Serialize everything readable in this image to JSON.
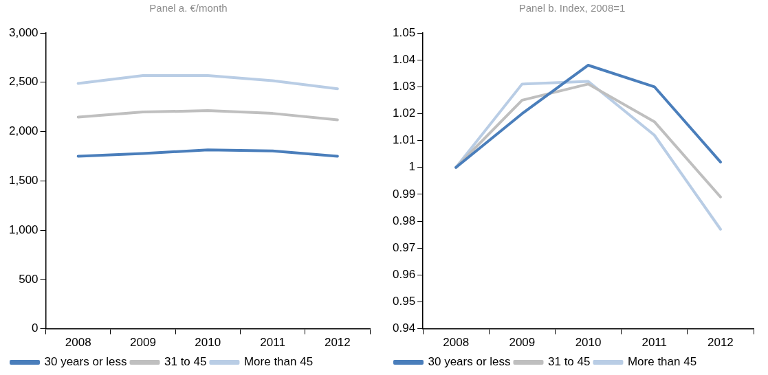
{
  "chart_data": [
    {
      "type": "line",
      "title": "Panel a. €/month",
      "categories": [
        "2008",
        "2009",
        "2010",
        "2011",
        "2012"
      ],
      "series": [
        {
          "name": "30 years or less",
          "color": "#4a7ebb",
          "values": [
            1750,
            1777,
            1814,
            1803,
            1750
          ]
        },
        {
          "name": "31 to 45",
          "color": "#bfbfbf",
          "values": [
            2147,
            2198,
            2212,
            2184,
            2118
          ]
        },
        {
          "name": "More than 45",
          "color": "#b9cde5",
          "values": [
            2488,
            2568,
            2568,
            2516,
            2434
          ]
        }
      ],
      "ylim": [
        0,
        3000
      ],
      "yticks": [
        0,
        500,
        {
          "value": 1000,
          "label": "1,000"
        },
        {
          "value": 1500,
          "label": "1,500"
        },
        {
          "value": 2000,
          "label": "2,000"
        },
        {
          "value": 2500,
          "label": "2,500"
        },
        {
          "value": 3000,
          "label": "3,000"
        }
      ],
      "grid": false,
      "legend": "bottom",
      "marker": "none",
      "line_style": "solid"
    },
    {
      "type": "line",
      "title": "Panel b. Index, 2008=1",
      "categories": [
        "2008",
        "2009",
        "2010",
        "2011",
        "2012"
      ],
      "series": [
        {
          "name": "30 years or less",
          "color": "#4a7ebb",
          "values": [
            1,
            1.02,
            1.038,
            1.03,
            1.002
          ]
        },
        {
          "name": "31 to 45",
          "color": "#bfbfbf",
          "values": [
            1,
            1.025,
            1.031,
            1.017,
            0.989
          ]
        },
        {
          "name": "More than 45",
          "color": "#b9cde5",
          "values": [
            1,
            1.031,
            1.032,
            1.012,
            0.977
          ]
        }
      ],
      "ylim": [
        0.94,
        1.05
      ],
      "yticks": [
        0.94,
        0.95,
        0.96,
        0.97,
        0.98,
        0.99,
        1,
        1.01,
        1.02,
        1.03,
        1.04,
        1.05
      ],
      "grid": false,
      "legend": "bottom",
      "marker": "none",
      "line_style": "solid"
    }
  ]
}
